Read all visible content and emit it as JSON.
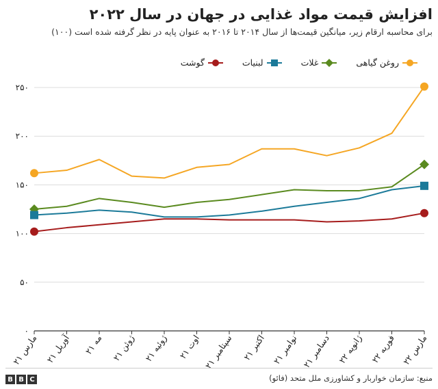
{
  "title": "افزایش قیمت مواد غذایی در جهان در سال ۲۰۲۲",
  "subtitle": "برای محاسبه ارقام زیر، میانگین قیمت‌ها از سال ۲۰۱۴ تا ۲۰۱۶ به عنوان پایه در نظر گرفته شده است (۱۰۰)",
  "source": "منبع: سازمان خواربار و کشاورزی ملل متحد (فائو)",
  "logo": [
    "B",
    "B",
    "C"
  ],
  "colors": {
    "grid": "#dcdcdc",
    "axis": "#333333",
    "text": "#222222"
  },
  "chart_data": {
    "type": "line",
    "x": [
      "مارس ۲۱",
      "آوریل ۲۱",
      "مه ۲۱",
      "ژوئن ۲۱",
      "ژوئیه ۲۱",
      "اوت ۲۱",
      "سپتامبر ۲۱",
      "اکتبر ۲۱",
      "نوامبر ۲۱",
      "دسامبر ۲۱",
      "ژانویه ۲۲",
      "فوریه ۲۲",
      "مارس ۲۲"
    ],
    "y_ticks": [
      0,
      50,
      100,
      150,
      200,
      250
    ],
    "y_tick_labels": [
      "۰",
      "۵۰",
      "۱۰۰",
      "۱۵۰",
      "۲۰۰",
      "۲۵۰"
    ],
    "ylim": [
      0,
      250
    ],
    "grid": true,
    "legend_position": "top",
    "series": [
      {
        "name": "روغن گیاهی",
        "color": "#F5A623",
        "marker": "circle",
        "values": [
          162,
          165,
          176,
          159,
          157,
          168,
          171,
          187,
          187,
          180,
          188,
          203,
          251
        ]
      },
      {
        "name": "غلات",
        "color": "#5A8A1F",
        "marker": "diamond",
        "values": [
          125,
          128,
          136,
          132,
          127,
          132,
          135,
          140,
          145,
          144,
          144,
          148,
          171
        ]
      },
      {
        "name": "لبنیات",
        "color": "#1B7A99",
        "marker": "square",
        "values": [
          119,
          121,
          124,
          122,
          117,
          117,
          119,
          123,
          128,
          132,
          136,
          145,
          149
        ]
      },
      {
        "name": "گوشت",
        "color": "#A61C1C",
        "marker": "circle",
        "values": [
          102,
          106,
          109,
          112,
          115,
          115,
          114,
          114,
          114,
          112,
          113,
          115,
          121
        ]
      }
    ]
  }
}
